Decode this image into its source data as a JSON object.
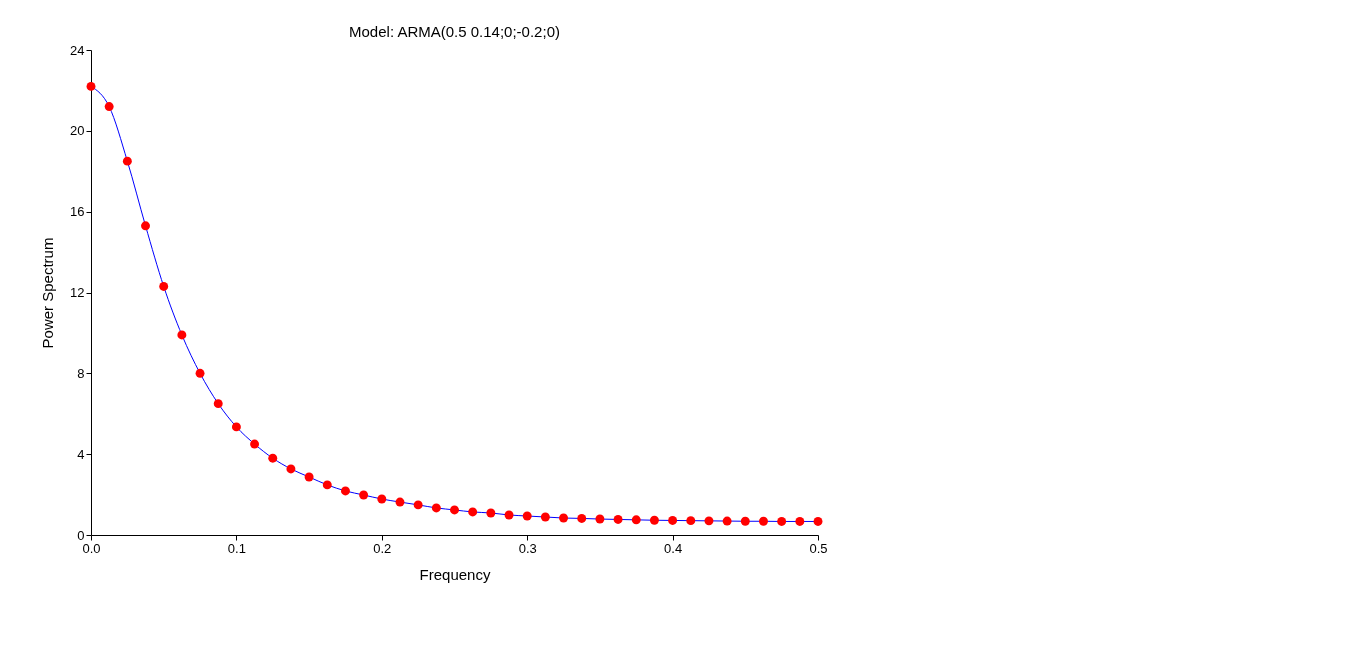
{
  "chart_data": {
    "type": "line",
    "title": "Model: ARMA(0.5 0.14;0;-0.2;0)",
    "xlabel": "Frequency",
    "ylabel": "Power Spectrum",
    "x": [
      0,
      0.0125,
      0.025,
      0.0375,
      0.05,
      0.0625,
      0.075,
      0.0875,
      0.1,
      0.1125,
      0.125,
      0.1375,
      0.15,
      0.1625,
      0.175,
      0.1875,
      0.2,
      0.2125,
      0.225,
      0.2375,
      0.25,
      0.2625,
      0.275,
      0.2875,
      0.3,
      0.3125,
      0.325,
      0.3375,
      0.35,
      0.3625,
      0.375,
      0.3875,
      0.4,
      0.4125,
      0.425,
      0.4375,
      0.45,
      0.4625,
      0.475,
      0.4875,
      0.5
    ],
    "series": [
      {
        "color": "#0000ff",
        "colors": [
          "#ff0000",
          "#ff0000",
          "#ff0000",
          "#ff0000",
          "#ff0000",
          "#ff0000",
          "#ff0000",
          "#ff0000",
          "#ff0000",
          "#ff0000",
          "#ff0000",
          "#ff0000",
          "#ff0000",
          "#ff0000",
          "#ff0000",
          "#ff0000",
          "#ff0000",
          "#ff0000",
          "#ff0000",
          "#ff0000",
          "#ff0000",
          "#ff0000",
          "#ff0000",
          "#ff0000",
          "#ff0000",
          "#ff0000",
          "#ff0000",
          "#ff0000",
          "#ff0000",
          "#ff0000",
          "#ff0000",
          "#ff0000",
          "#ff0000",
          "#ff0000",
          "#ff0000",
          "#ff0000",
          "#ff0000",
          "#ff0000",
          "#ff0000",
          "#ff0000",
          "#ff0000"
        ],
        "values": [
          22.2,
          21.2,
          18.5,
          15.3,
          12.3,
          9.9,
          8.0,
          6.5,
          5.35,
          4.5,
          3.8,
          3.27,
          2.87,
          2.48,
          2.18,
          1.98,
          1.78,
          1.63,
          1.49,
          1.34,
          1.24,
          1.14,
          1.09,
          0.99,
          0.94,
          0.89,
          0.84,
          0.82,
          0.79,
          0.77,
          0.75,
          0.73,
          0.72,
          0.71,
          0.7,
          0.69,
          0.68,
          0.68,
          0.67,
          0.67,
          0.67
        ]
      }
    ],
    "xlim": [
      0,
      0.5
    ],
    "ylim": [
      0,
      24
    ],
    "xticks": [
      {
        "value": 0,
        "label": "0.0"
      },
      0.1,
      0.2,
      0.3,
      0.4,
      0.5
    ],
    "yticks": [
      0,
      4,
      8,
      12,
      16,
      20,
      24
    ],
    "grid": false,
    "marker": "circle",
    "line_style": "solid"
  }
}
